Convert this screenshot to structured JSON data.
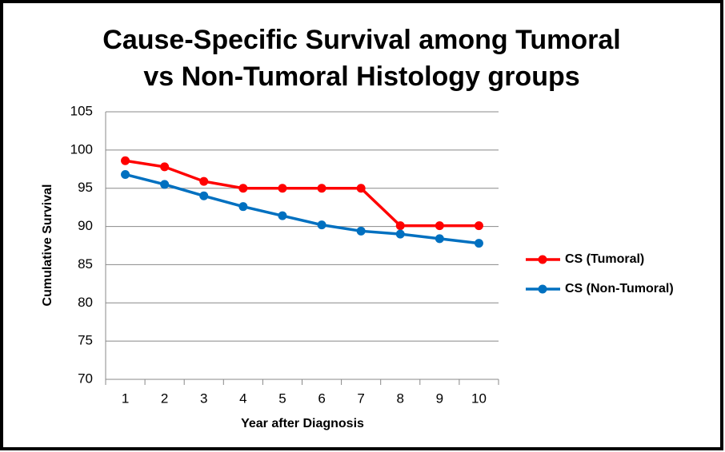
{
  "chart_data": {
    "type": "line",
    "title": [
      "Cause-Specific Survival among Tumoral",
      "vs Non-Tumoral Histology groups"
    ],
    "x_label": "Year after Diagnosis",
    "y_label": "Cumulative Survival",
    "categories": [
      "1",
      "2",
      "3",
      "4",
      "5",
      "6",
      "7",
      "8",
      "9",
      "10"
    ],
    "series": [
      {
        "name": "CS (Tumoral)",
        "color": "#ff0000",
        "values": [
          98.6,
          97.8,
          95.9,
          95.0,
          95.0,
          95.0,
          95.0,
          90.1,
          90.1,
          90.1
        ]
      },
      {
        "name": "CS (Non-Tumoral)",
        "color": "#0070c0",
        "values": [
          96.8,
          95.5,
          94.0,
          92.6,
          91.4,
          90.2,
          89.4,
          89.0,
          88.4,
          87.8
        ]
      }
    ],
    "ylim": [
      70,
      105
    ],
    "yticks": [
      70,
      75,
      80,
      85,
      90,
      95,
      100,
      105
    ],
    "grid": true,
    "legend": "right"
  }
}
